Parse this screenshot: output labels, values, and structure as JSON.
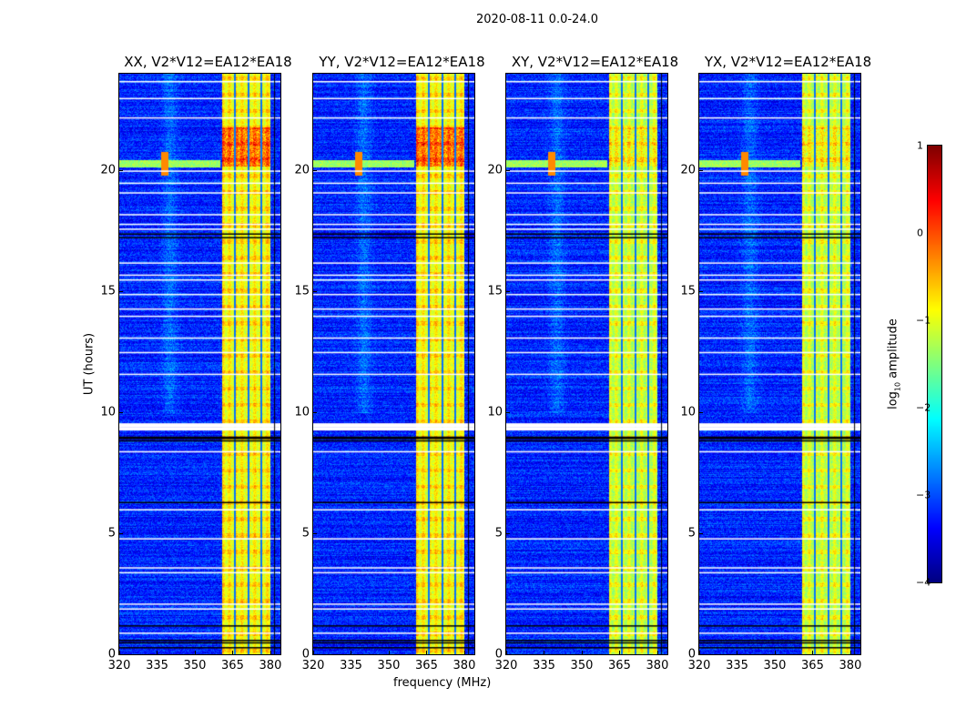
{
  "suptitle": "2020-08-11 0.0-24.0",
  "chart_data": {
    "type": "heatmap",
    "panels": [
      {
        "title": "XX, V2*V12=EA12*EA18",
        "polarization": "XX"
      },
      {
        "title": "YY, V2*V12=EA12*EA18",
        "polarization": "YY"
      },
      {
        "title": "XY, V2*V12=EA12*EA18",
        "polarization": "XY"
      },
      {
        "title": "YX, V2*V12=EA12*EA18",
        "polarization": "YX"
      }
    ],
    "xlabel": "frequency (MHz)",
    "ylabel": "UT (hours)",
    "xlim": [
      320,
      384
    ],
    "ylim": [
      0,
      24
    ],
    "xticks": [
      "320",
      "335",
      "350",
      "365",
      "380"
    ],
    "xtick_values": [
      320,
      335,
      350,
      365,
      380
    ],
    "yticks": [
      "0",
      "5",
      "10",
      "15",
      "20"
    ],
    "ytick_values": [
      0,
      5,
      10,
      15,
      20
    ],
    "colorbar": {
      "label": "log10 amplitude",
      "label_main": "log",
      "label_sub": "10",
      "label_rest": " amplitude",
      "range": [
        -4,
        1
      ],
      "ticks": [
        "1",
        "0",
        "−1",
        "−2",
        "−3",
        "−4"
      ],
      "tick_values": [
        1,
        0,
        -1,
        -2,
        -3,
        -4
      ],
      "colormap": "jet"
    },
    "background_level": -3.2,
    "rfi_band_mhz": [
      360.5,
      380
    ],
    "rfi_band_level": -1.0,
    "strong_rfi_hours": [
      20.2,
      21.8
    ],
    "white_flag_hours": [
      0.9,
      1.9,
      2.1,
      3.4,
      3.6,
      4.8,
      6.0,
      8.4,
      9.4,
      9.55,
      11.6,
      12.5,
      13.1,
      14.0,
      14.3,
      14.9,
      15.5,
      15.7,
      16.2,
      17.6,
      17.8,
      18.2,
      19.1,
      19.5,
      20.0,
      22.2,
      23.0,
      23.7
    ],
    "black_flag_hours": [
      0.3,
      0.5,
      0.6,
      1.2,
      6.3,
      8.85,
      8.95,
      9.0,
      17.25,
      17.4
    ]
  }
}
